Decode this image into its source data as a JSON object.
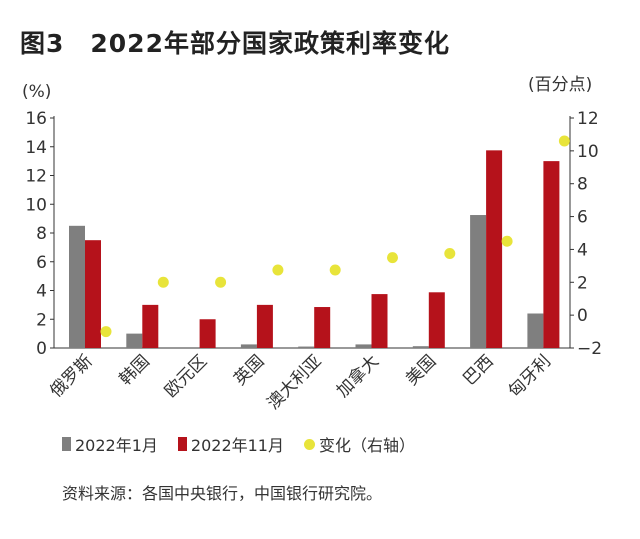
{
  "chart_data": {
    "type": "bar",
    "title": "图3　2022年部分国家政策利率变化",
    "left_unit": "(%)",
    "right_unit": "(百分点)",
    "categories": [
      "俄罗斯",
      "韩国",
      "欧元区",
      "英国",
      "澳大利亚",
      "加拿大",
      "美国",
      "巴西",
      "匈牙利"
    ],
    "series": [
      {
        "name": "2022年1月",
        "axis": "left",
        "type": "bar",
        "color": "#7f7f7f",
        "values": [
          8.5,
          1.0,
          0,
          0.25,
          0.1,
          0.25,
          0.125,
          9.25,
          2.4
        ]
      },
      {
        "name": "2022年11月",
        "axis": "left",
        "type": "bar",
        "color": "#b5121b",
        "values": [
          7.5,
          3.0,
          2.0,
          3.0,
          2.85,
          3.75,
          3.875,
          13.75,
          13.0
        ]
      },
      {
        "name": "变化（右轴）",
        "axis": "right",
        "type": "scatter",
        "color": "#e8e43a",
        "values": [
          -1.0,
          2.0,
          2.0,
          2.75,
          2.75,
          3.5,
          3.75,
          4.5,
          10.6
        ]
      }
    ],
    "left_ylim": [
      0,
      16
    ],
    "left_ticks": [
      "0",
      "2",
      "4",
      "6",
      "8",
      "10",
      "12",
      "14",
      "16"
    ],
    "right_ylim": [
      -2,
      12
    ],
    "right_ticks": [
      "−2",
      "0",
      "2",
      "4",
      "6",
      "8",
      "10",
      "12"
    ],
    "legend_placement": "bottom",
    "grid": false
  },
  "source": "资料来源：各国中央银行，中国银行研究院。"
}
